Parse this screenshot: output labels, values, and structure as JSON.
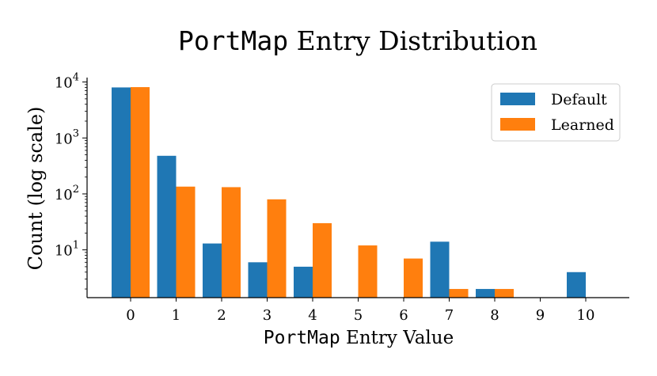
{
  "chart_data": {
    "type": "bar",
    "title_code": "PortMap",
    "title_rest": " Entry Distribution",
    "xlabel_code": "PortMap",
    "xlabel_rest": " Entry Value",
    "ylabel": "Count (log scale)",
    "yscale": "log",
    "ylim": [
      1.4,
      12000
    ],
    "yticks": [
      {
        "value": 10,
        "base": "10",
        "exp": "1"
      },
      {
        "value": 100,
        "base": "10",
        "exp": "2"
      },
      {
        "value": 1000,
        "base": "10",
        "exp": "3"
      },
      {
        "value": 10000,
        "base": "10",
        "exp": "4"
      }
    ],
    "categories": [
      "0",
      "1",
      "2",
      "3",
      "4",
      "5",
      "6",
      "7",
      "8",
      "9",
      "10"
    ],
    "series": [
      {
        "name": "Default",
        "color": "#1f77b4",
        "values": [
          8000,
          480,
          13,
          6,
          5,
          0,
          0,
          14,
          2,
          0,
          4
        ]
      },
      {
        "name": "Learned",
        "color": "#ff7f0e",
        "values": [
          8100,
          135,
          132,
          80,
          30,
          12,
          7,
          2,
          2,
          0,
          0
        ]
      }
    ],
    "legend_position": "top-right",
    "grid": false
  }
}
